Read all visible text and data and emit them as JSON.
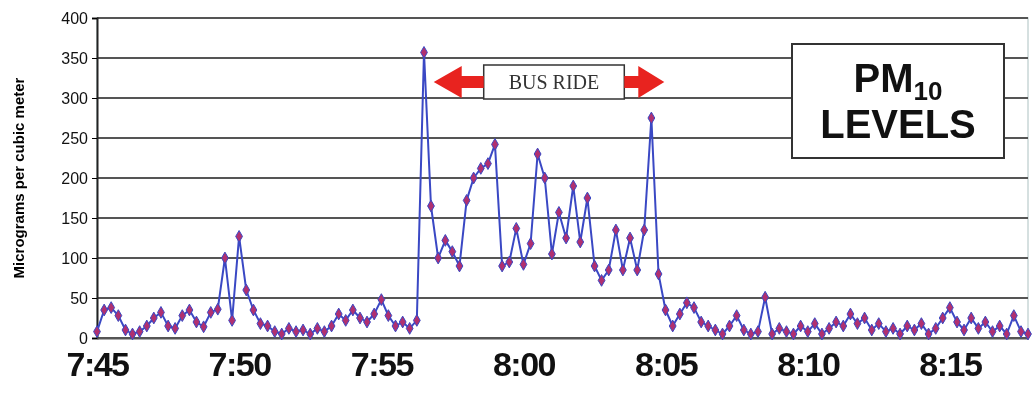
{
  "chart_data": {
    "type": "line",
    "title": "PM$_{10}$ LEVELS",
    "ylabel": "Micrograms per cubic meter",
    "x": [
      7.75,
      7.7542,
      7.7583,
      7.7625,
      7.7667,
      7.7708,
      7.775,
      7.7792,
      7.7833,
      7.7875,
      7.7917,
      7.7958,
      7.8,
      7.8042,
      7.8083,
      7.8125,
      7.8167,
      7.8208,
      7.825,
      7.8292,
      7.8333,
      7.8375,
      7.8417,
      7.8458,
      7.85,
      7.8542,
      7.8583,
      7.8625,
      7.8667,
      7.8708,
      7.875,
      7.8792,
      7.8833,
      7.8875,
      7.8917,
      7.8958,
      7.9,
      7.9042,
      7.9083,
      7.9125,
      7.9167,
      7.9208,
      7.925,
      7.9292,
      7.9333,
      7.9375,
      7.9417,
      7.9458,
      7.95,
      7.9542,
      7.9583,
      7.9625,
      7.9667,
      7.9708,
      7.975,
      7.9792,
      7.9833,
      7.9875,
      7.9917,
      7.9958,
      8,
      8.0042,
      8.0083,
      8.0125,
      8.0167,
      8.0208,
      8.025,
      8.0292,
      8.0333,
      8.0375,
      8.0417,
      8.0458,
      8.05,
      8.0542,
      8.0583,
      8.0625,
      8.0667,
      8.0708,
      8.075,
      8.0792,
      8.0833,
      8.0875,
      8.0917,
      8.0958,
      8.1,
      8.1042,
      8.1083,
      8.1125,
      8.1167,
      8.1208,
      8.125,
      8.1292,
      8.1333,
      8.1375,
      8.1417,
      8.1458,
      8.15,
      8.1542,
      8.1583,
      8.1625,
      8.1667,
      8.1708,
      8.175,
      8.1792,
      8.1833,
      8.1875,
      8.1917,
      8.1958,
      8.2,
      8.2042,
      8.2083,
      8.2125,
      8.2167,
      8.2208,
      8.225,
      8.2292,
      8.2333,
      8.2375,
      8.2417,
      8.2458,
      8.25,
      8.2542,
      8.2583,
      8.2625,
      8.2667,
      8.2708,
      8.275,
      8.2792,
      8.2833,
      8.2875,
      8.2917,
      8.2958
    ],
    "series": [
      {
        "color": "#3a48c4",
        "values": [
          8,
          35,
          38,
          28,
          10,
          5,
          8,
          15,
          25,
          32,
          15,
          12,
          28,
          35,
          20,
          14,
          32,
          36,
          100,
          22,
          127,
          60,
          35,
          18,
          15,
          8,
          5,
          12,
          8,
          10,
          5,
          12,
          8,
          15,
          30,
          22,
          35,
          25,
          20,
          30,
          48,
          28,
          15,
          20,
          12,
          22,
          357,
          165,
          100,
          122,
          108,
          90,
          172,
          200,
          212,
          218,
          242,
          90,
          95,
          137,
          92,
          118,
          230,
          200,
          105,
          157,
          125,
          190,
          120,
          175,
          90,
          72,
          85,
          135,
          85,
          125,
          85,
          135,
          275,
          80,
          35,
          15,
          30,
          44,
          38,
          20,
          15,
          10,
          5,
          15,
          28,
          10,
          5,
          8,
          51,
          5,
          12,
          8,
          5,
          15,
          8,
          18,
          5,
          12,
          20,
          15,
          30,
          18,
          25,
          10,
          18,
          8,
          12,
          5,
          15,
          10,
          18,
          5,
          12,
          25,
          38,
          20,
          10,
          25,
          12,
          20,
          8,
          15,
          5,
          28,
          8,
          5
        ]
      }
    ],
    "xlim": [
      7.75,
      8.2958
    ],
    "xticks": [
      {
        "value": 7.75,
        "label": "7:45"
      },
      {
        "value": 7.8333,
        "label": "7:50"
      },
      {
        "value": 7.9167,
        "label": "7:55"
      },
      {
        "value": 8,
        "label": "8:00"
      },
      {
        "value": 8.0833,
        "label": "8:05"
      },
      {
        "value": 8.1667,
        "label": "8:10"
      },
      {
        "value": 8.25,
        "label": "8:15"
      }
    ],
    "ylim": [
      0,
      400
    ],
    "yticks": [
      0,
      50,
      100,
      150,
      200,
      250,
      300,
      350,
      400
    ],
    "grid": "y",
    "marker": "diamond",
    "line_style": "solid",
    "annotations": [
      "BUS RIDE"
    ]
  }
}
